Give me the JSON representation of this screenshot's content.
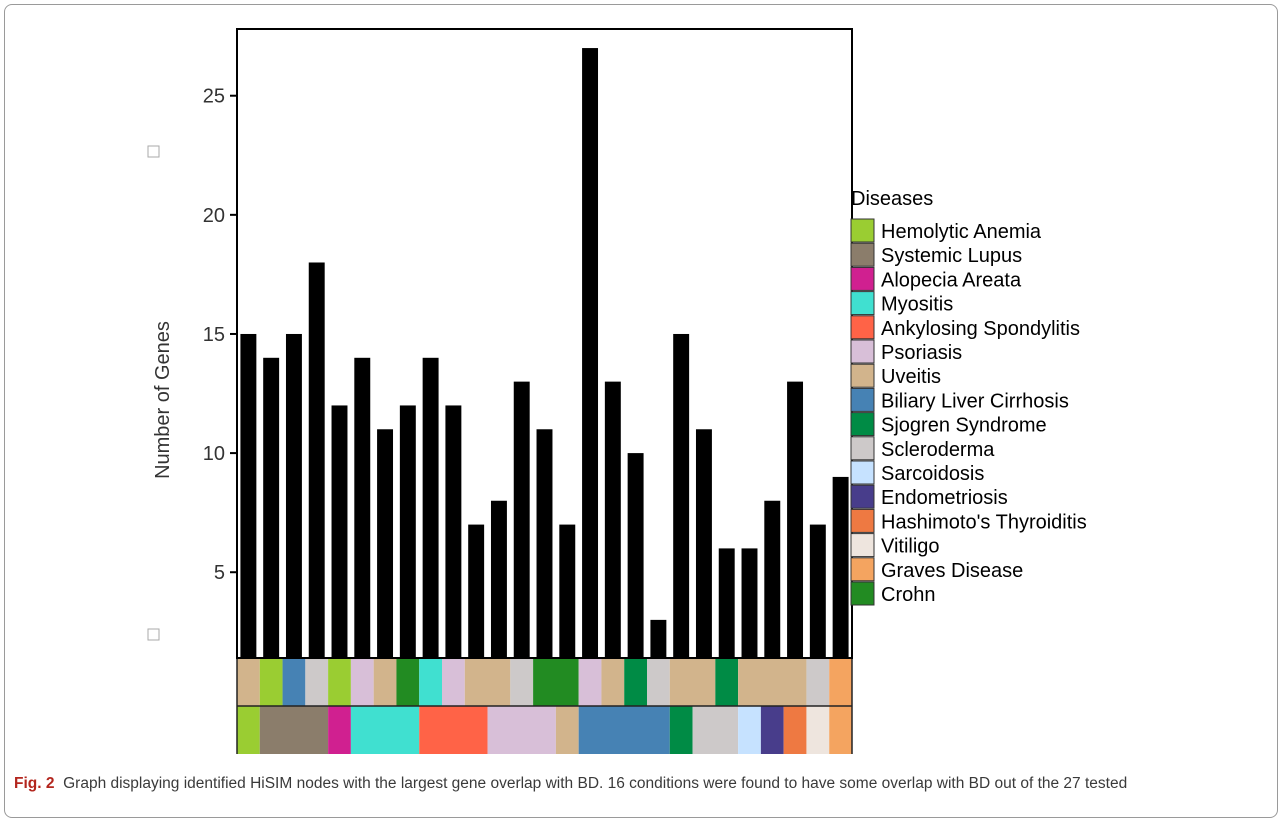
{
  "caption": {
    "label": "Fig. 2",
    "text": "Graph displaying identified HiSIM nodes with the largest gene overlap with BD. 16 conditions were found to have some overlap with BD out of the 27 tested"
  },
  "chart_data": {
    "type": "bar",
    "title": "",
    "xlabel": "",
    "ylabel": "Number of Genes",
    "ylim": [
      1.4,
      27.8
    ],
    "yticks": [
      5,
      10,
      15,
      20,
      25
    ],
    "grid": false,
    "bar_color": "#000000",
    "values": [
      15,
      14,
      15,
      18,
      12,
      14,
      11,
      12,
      14,
      12,
      7,
      8,
      13,
      11,
      7,
      27,
      13,
      10,
      3,
      15,
      11,
      6,
      6,
      8,
      13,
      7,
      9
    ],
    "legend": {
      "title": "Diseases",
      "placement": "right",
      "entries": [
        {
          "name": "Hemolytic Anemia",
          "color": "#9acd32"
        },
        {
          "name": "Systemic Lupus",
          "color": "#8b7d6b"
        },
        {
          "name": "Alopecia Areata",
          "color": "#d02090"
        },
        {
          "name": "Myositis",
          "color": "#40e0d0"
        },
        {
          "name": "Ankylosing Spondylitis",
          "color": "#ff6347"
        },
        {
          "name": "Psoriasis",
          "color": "#d8bfd8"
        },
        {
          "name": "Uveitis",
          "color": "#d2b48c"
        },
        {
          "name": "Biliary Liver Cirrhosis",
          "color": "#4682b4"
        },
        {
          "name": "Sjogren Syndrome",
          "color": "#008b45"
        },
        {
          "name": "Scleroderma",
          "color": "#cdc9c9"
        },
        {
          "name": "Sarcoidosis",
          "color": "#c6e2ff"
        },
        {
          "name": "Endometriosis",
          "color": "#483d8b"
        },
        {
          "name": "Hashimoto's Thyroiditis",
          "color": "#ee7942"
        },
        {
          "name": "Vitiligo",
          "color": "#eee5de"
        },
        {
          "name": "Graves Disease",
          "color": "#f4a460"
        },
        {
          "name": "Crohn",
          "color": "#228b22"
        }
      ]
    },
    "annotation_rows": [
      [
        {
          "disease": "Uveitis",
          "span": 1
        },
        {
          "disease": "Hemolytic Anemia",
          "span": 1
        },
        {
          "disease": "Biliary Liver Cirrhosis",
          "span": 1
        },
        {
          "disease": "Scleroderma",
          "span": 1
        },
        {
          "disease": "Hemolytic Anemia",
          "span": 1
        },
        {
          "disease": "Psoriasis",
          "span": 1
        },
        {
          "disease": "Uveitis",
          "span": 1
        },
        {
          "disease": "Crohn",
          "span": 1
        },
        {
          "disease": "Myositis",
          "span": 1
        },
        {
          "disease": "Psoriasis",
          "span": 1
        },
        {
          "disease": "Uveitis",
          "span": 2
        },
        {
          "disease": "Scleroderma",
          "span": 1
        },
        {
          "disease": "Crohn",
          "span": 2
        },
        {
          "disease": "Psoriasis",
          "span": 1
        },
        {
          "disease": "Uveitis",
          "span": 1
        },
        {
          "disease": "Sjogren Syndrome",
          "span": 1
        },
        {
          "disease": "Scleroderma",
          "span": 1
        },
        {
          "disease": "Uveitis",
          "span": 2
        },
        {
          "disease": "Sjogren Syndrome",
          "span": 1
        },
        {
          "disease": "Uveitis",
          "span": 3
        },
        {
          "disease": "Scleroderma",
          "span": 1
        },
        {
          "disease": "Graves Disease",
          "span": 1
        }
      ],
      [
        {
          "disease": "Hemolytic Anemia",
          "span": 1
        },
        {
          "disease": "Systemic Lupus",
          "span": 3
        },
        {
          "disease": "Alopecia Areata",
          "span": 1
        },
        {
          "disease": "Myositis",
          "span": 3
        },
        {
          "disease": "Ankylosing Spondylitis",
          "span": 3
        },
        {
          "disease": "Psoriasis",
          "span": 3
        },
        {
          "disease": "Uveitis",
          "span": 1
        },
        {
          "disease": "Biliary Liver Cirrhosis",
          "span": 4
        },
        {
          "disease": "Sjogren Syndrome",
          "span": 1
        },
        {
          "disease": "Scleroderma",
          "span": 2
        },
        {
          "disease": "Sarcoidosis",
          "span": 1
        },
        {
          "disease": "Endometriosis",
          "span": 1
        },
        {
          "disease": "Hashimoto's Thyroiditis",
          "span": 1
        },
        {
          "disease": "Vitiligo",
          "span": 1
        },
        {
          "disease": "Graves Disease",
          "span": 1
        }
      ]
    ]
  }
}
